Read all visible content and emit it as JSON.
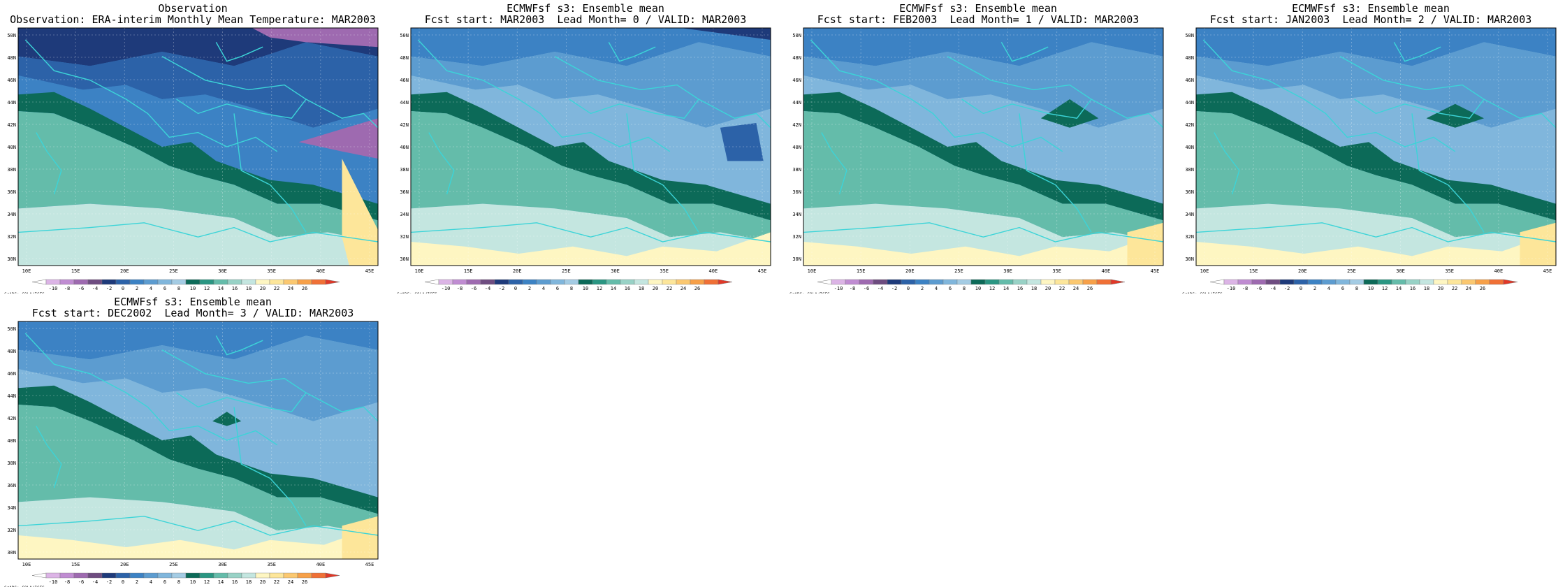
{
  "colors": {
    "scale": [
      "#ffffff",
      "#dcb4e6",
      "#c08cd2",
      "#9e6ab0",
      "#6e4c80",
      "#1e3a7a",
      "#2c62a8",
      "#3c82c4",
      "#5c9cd0",
      "#80b6dc",
      "#a4cce4",
      "#0c6a58",
      "#2a9682",
      "#64bcaa",
      "#98d2c6",
      "#c4e6e0",
      "#fef6c2",
      "#fde69a",
      "#fbc870",
      "#f7a048",
      "#f07036",
      "#e03828"
    ],
    "coast": "#3cd4d8"
  },
  "colorbar": {
    "label": "GrADS: COLA/IGES",
    "ticks": [
      "-10",
      "-8",
      "-6",
      "-4",
      "-2",
      "0",
      "2",
      "4",
      "6",
      "8",
      "10",
      "12",
      "14",
      "16",
      "18",
      "20",
      "22",
      "24",
      "26"
    ]
  },
  "axes": {
    "lon_ticks": [
      "10E",
      "15E",
      "20E",
      "25E",
      "30E",
      "35E",
      "40E",
      "45E"
    ],
    "lat_ticks": [
      "50N",
      "48N",
      "46N",
      "44N",
      "42N",
      "40N",
      "38N",
      "36N",
      "34N",
      "32N",
      "30N"
    ]
  },
  "panels": [
    {
      "id": "observation",
      "title1": "Observation",
      "title2": "Observation: ERA-interim Monthly Mean Temperature: MAR2003",
      "variant": "obs"
    },
    {
      "id": "lead0",
      "title1": "ECMWFsf s3: Ensemble mean",
      "title2": "Fcst start: MAR2003  Lead Month= 0 / VALID: MAR2003",
      "variant": "fc0"
    },
    {
      "id": "lead1",
      "title1": "ECMWFsf s3: Ensemble mean",
      "title2": "Fcst start: FEB2003  Lead Month= 1 / VALID: MAR2003",
      "variant": "fc1"
    },
    {
      "id": "lead2",
      "title1": "ECMWFsf s3: Ensemble mean",
      "title2": "Fcst start: JAN2003  Lead Month= 2 / VALID: MAR2003",
      "variant": "fc2"
    },
    {
      "id": "lead3",
      "title1": "ECMWFsf s3: Ensemble mean",
      "title2": "Fcst start: DEC2002  Lead Month= 3 / VALID: MAR2003",
      "variant": "fc3"
    }
  ]
}
